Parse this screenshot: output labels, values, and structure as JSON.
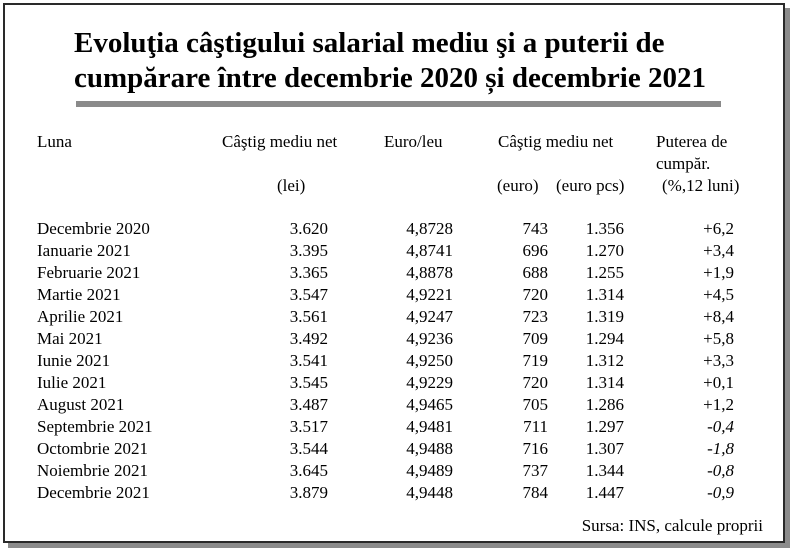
{
  "title_line1": "Evoluţia câştigului salarial mediu şi a puterii de",
  "title_line2": "cumpărare între decembrie 2020 și decembrie 2021",
  "headers": {
    "luna": "Luna",
    "castig_net": "Câştig mediu net",
    "lei": "(lei)",
    "euro_leu": "Euro/leu",
    "castig_net_2": "Câştig mediu net",
    "euro": "(euro)",
    "euro_pcs": "(euro pcs)",
    "puterea_1": "Puterea de",
    "puterea_2": "cumpăr.",
    "puterea_3": "(%,12 luni)"
  },
  "rows": [
    {
      "luna": "Decembrie 2020",
      "lei": "3.620",
      "euro_leu": "4,8728",
      "euro": "743",
      "euro_pcs": "1.356",
      "putere": "+6,2",
      "negative": false
    },
    {
      "luna": "Ianuarie 2021",
      "lei": "3.395",
      "euro_leu": "4,8741",
      "euro": "696",
      "euro_pcs": "1.270",
      "putere": "+3,4",
      "negative": false
    },
    {
      "luna": "Februarie 2021",
      "lei": "3.365",
      "euro_leu": "4,8878",
      "euro": "688",
      "euro_pcs": "1.255",
      "putere": "+1,9",
      "negative": false
    },
    {
      "luna": "Martie 2021",
      "lei": "3.547",
      "euro_leu": "4,9221",
      "euro": "720",
      "euro_pcs": "1.314",
      "putere": "+4,5",
      "negative": false
    },
    {
      "luna": "Aprilie 2021",
      "lei": "3.561",
      "euro_leu": "4,9247",
      "euro": "723",
      "euro_pcs": "1.319",
      "putere": "+8,4",
      "negative": false
    },
    {
      "luna": "Mai 2021",
      "lei": "3.492",
      "euro_leu": "4,9236",
      "euro": "709",
      "euro_pcs": "1.294",
      "putere": "+5,8",
      "negative": false
    },
    {
      "luna": "Iunie 2021",
      "lei": "3.541",
      "euro_leu": "4,9250",
      "euro": "719",
      "euro_pcs": "1.312",
      "putere": "+3,3",
      "negative": false
    },
    {
      "luna": "Iulie 2021",
      "lei": "3.545",
      "euro_leu": "4,9229",
      "euro": "720",
      "euro_pcs": "1.314",
      "putere": "+0,1",
      "negative": false
    },
    {
      "luna": "August 2021",
      "lei": "3.487",
      "euro_leu": "4,9465",
      "euro": "705",
      "euro_pcs": "1.286",
      "putere": "+1,2",
      "negative": false
    },
    {
      "luna": "Septembrie 2021",
      "lei": "3.517",
      "euro_leu": "4,9481",
      "euro": "711",
      "euro_pcs": "1.297",
      "putere": "-0,4",
      "negative": true
    },
    {
      "luna": "Octombrie 2021",
      "lei": "3.544",
      "euro_leu": "4,9488",
      "euro": "716",
      "euro_pcs": "1.307",
      "putere": "-1,8",
      "negative": true
    },
    {
      "luna": "Noiembrie 2021",
      "lei": "3.645",
      "euro_leu": "4,9489",
      "euro": "737",
      "euro_pcs": "1.344",
      "putere": "-0,8",
      "negative": true
    },
    {
      "luna": "Decembrie 2021",
      "lei": "3.879",
      "euro_leu": "4,9448",
      "euro": "784",
      "euro_pcs": "1.447",
      "putere": "-0,9",
      "negative": true
    }
  ],
  "source": "Sursa: INS, calcule proprii"
}
